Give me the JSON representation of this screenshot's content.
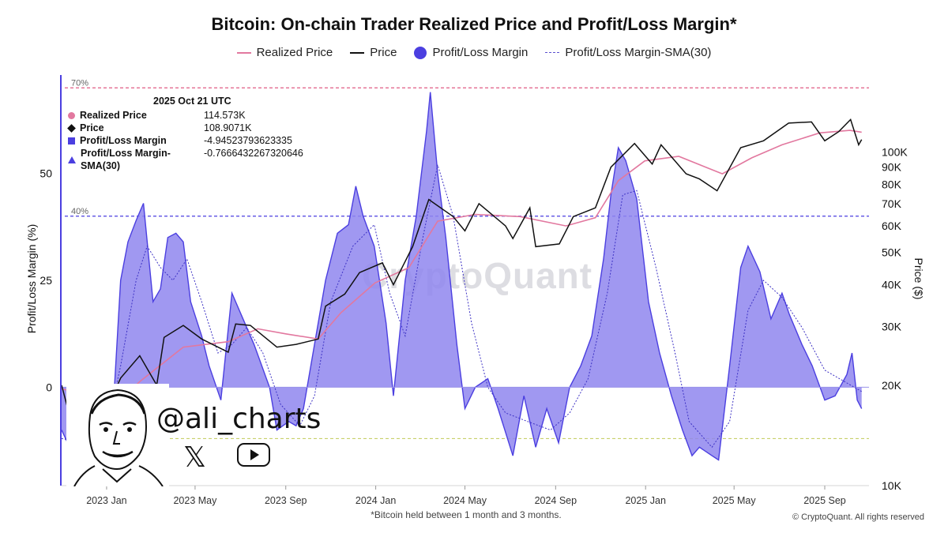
{
  "title": "Bitcoin: On-chain Trader Realized Price and Profit/Loss Margin*",
  "legend": [
    {
      "label": "Realized Price",
      "kind": "line",
      "color": "#e2789f"
    },
    {
      "label": "Price",
      "kind": "line",
      "color": "#111111"
    },
    {
      "label": "Profit/Loss Margin",
      "kind": "dot",
      "color": "#4b3fe0"
    },
    {
      "label": "Profit/Loss Margin-SMA(30)",
      "kind": "dash",
      "color": "#5a4fcf"
    }
  ],
  "tooltip": {
    "date": "2025 Oct 21 UTC",
    "rows": [
      {
        "label": "Realized Price",
        "value": "114.573K",
        "marker": "circle"
      },
      {
        "label": "Price",
        "value": "108.9071K",
        "marker": "diamond"
      },
      {
        "label": "Profit/Loss Margin",
        "value": "-4.94523793623335",
        "marker": "square"
      },
      {
        "label": "Profit/Loss Margin-SMA(30)",
        "value": "-0.7666432267320646",
        "marker": "tri"
      }
    ]
  },
  "left_axis_title": "Profit/Loss Margin (%)",
  "right_axis_title": "Price ($)",
  "footnote": "*Bitcoin held between 1 month and 3 months.",
  "copyright": "© CryptoQuant. All rights reserved",
  "watermark": "CryptoQuant",
  "handle": "@ali_charts",
  "x_icon_glyph": "𝕏",
  "colors": {
    "accent": "#4b3fe0",
    "fill": "#8f86ee",
    "realized": "#e2789f",
    "price": "#111111",
    "ref70": "#e05b83",
    "ref40": "#4b3fe0",
    "refLow": "#c8d06a"
  },
  "chart_data": {
    "type": "area",
    "left_axis": {
      "label": "Profit/Loss Margin (%)",
      "ticks": [
        0,
        25,
        50
      ],
      "range": [
        -23,
        73
      ]
    },
    "right_axis": {
      "label": "Price ($)",
      "scale": "log",
      "range": [
        10000,
        170000
      ],
      "ticks": [
        {
          "value": 10000,
          "label": "10K"
        },
        {
          "value": 20000,
          "label": "20K"
        },
        {
          "value": 30000,
          "label": "30K"
        },
        {
          "value": 40000,
          "label": "40K"
        },
        {
          "value": 50000,
          "label": "50K"
        },
        {
          "value": 60000,
          "label": "60K"
        },
        {
          "value": 70000,
          "label": "70K"
        },
        {
          "value": 80000,
          "label": "80K"
        },
        {
          "value": 90000,
          "label": "90K"
        },
        {
          "value": 100000,
          "label": "100K"
        }
      ]
    },
    "x_ticks": [
      "2023 Jan",
      "2023 May",
      "2023 Sep",
      "2024 Jan",
      "2024 May",
      "2024 Sep",
      "2025 Jan",
      "2025 May",
      "2025 Sep"
    ],
    "x_range": [
      "2022-11-01",
      "2025-10-31"
    ],
    "reference_lines": [
      {
        "value": 70,
        "label": "70%",
        "color": "#e05b83"
      },
      {
        "value": 40,
        "label": "40%",
        "color": "#4b3fe0"
      },
      {
        "value": -12,
        "label": "-12%",
        "color": "#c8d06a"
      }
    ],
    "series": [
      {
        "name": "Profit/Loss Margin",
        "axis": "left",
        "points": [
          [
            "2022-11-01",
            -10
          ],
          [
            "2022-11-20",
            -17
          ],
          [
            "2022-12-10",
            -12
          ],
          [
            "2022-12-25",
            -14
          ],
          [
            "2023-01-10",
            -5
          ],
          [
            "2023-01-20",
            25
          ],
          [
            "2023-01-30",
            34
          ],
          [
            "2023-02-10",
            39
          ],
          [
            "2023-02-20",
            43
          ],
          [
            "2023-03-05",
            20
          ],
          [
            "2023-03-15",
            23
          ],
          [
            "2023-03-25",
            35
          ],
          [
            "2023-04-05",
            36
          ],
          [
            "2023-04-15",
            34
          ],
          [
            "2023-04-25",
            20
          ],
          [
            "2023-05-10",
            12
          ],
          [
            "2023-05-20",
            5
          ],
          [
            "2023-06-05",
            -3
          ],
          [
            "2023-06-20",
            22
          ],
          [
            "2023-07-05",
            16
          ],
          [
            "2023-07-20",
            10
          ],
          [
            "2023-08-10",
            0
          ],
          [
            "2023-08-20",
            -10
          ],
          [
            "2023-09-05",
            -8
          ],
          [
            "2023-09-15",
            -9
          ],
          [
            "2023-09-25",
            -5
          ],
          [
            "2023-10-10",
            10
          ],
          [
            "2023-10-25",
            25
          ],
          [
            "2023-11-10",
            36
          ],
          [
            "2023-11-25",
            38
          ],
          [
            "2023-12-05",
            47
          ],
          [
            "2023-12-15",
            40
          ],
          [
            "2023-12-30",
            33
          ],
          [
            "2024-01-15",
            15
          ],
          [
            "2024-01-25",
            -2
          ],
          [
            "2024-02-10",
            25
          ],
          [
            "2024-02-25",
            40
          ],
          [
            "2024-03-10",
            60
          ],
          [
            "2024-03-15",
            69
          ],
          [
            "2024-03-25",
            50
          ],
          [
            "2024-04-05",
            35
          ],
          [
            "2024-04-20",
            10
          ],
          [
            "2024-05-01",
            -5
          ],
          [
            "2024-05-15",
            0
          ],
          [
            "2024-06-01",
            2
          ],
          [
            "2024-06-15",
            -5
          ],
          [
            "2024-07-05",
            -16
          ],
          [
            "2024-07-20",
            -2
          ],
          [
            "2024-08-05",
            -14
          ],
          [
            "2024-08-20",
            -5
          ],
          [
            "2024-09-05",
            -13
          ],
          [
            "2024-09-20",
            0
          ],
          [
            "2024-10-05",
            5
          ],
          [
            "2024-10-20",
            12
          ],
          [
            "2024-11-05",
            30
          ],
          [
            "2024-11-15",
            45
          ],
          [
            "2024-11-25",
            56
          ],
          [
            "2024-12-05",
            53
          ],
          [
            "2024-12-20",
            44
          ],
          [
            "2025-01-05",
            20
          ],
          [
            "2025-01-20",
            8
          ],
          [
            "2025-02-05",
            -2
          ],
          [
            "2025-02-20",
            -10
          ],
          [
            "2025-03-05",
            -16
          ],
          [
            "2025-03-15",
            -14
          ],
          [
            "2025-04-01",
            -16
          ],
          [
            "2025-04-10",
            -17
          ],
          [
            "2025-04-25",
            5
          ],
          [
            "2025-05-10",
            28
          ],
          [
            "2025-05-20",
            33
          ],
          [
            "2025-06-05",
            27
          ],
          [
            "2025-06-20",
            16
          ],
          [
            "2025-07-05",
            22
          ],
          [
            "2025-07-15",
            17
          ],
          [
            "2025-08-01",
            10
          ],
          [
            "2025-08-15",
            5
          ],
          [
            "2025-09-01",
            -3
          ],
          [
            "2025-09-15",
            -2
          ],
          [
            "2025-10-01",
            3
          ],
          [
            "2025-10-08",
            8
          ],
          [
            "2025-10-15",
            -3
          ],
          [
            "2025-10-21",
            -5
          ]
        ]
      },
      {
        "name": "Profit/Loss Margin-SMA(30)",
        "axis": "left",
        "points": [
          [
            "2022-11-01",
            -12
          ],
          [
            "2022-12-01",
            -13
          ],
          [
            "2023-01-01",
            -10
          ],
          [
            "2023-01-20",
            5
          ],
          [
            "2023-02-10",
            25
          ],
          [
            "2023-02-25",
            33
          ],
          [
            "2023-03-15",
            28
          ],
          [
            "2023-04-01",
            25
          ],
          [
            "2023-04-20",
            30
          ],
          [
            "2023-05-10",
            20
          ],
          [
            "2023-06-01",
            8
          ],
          [
            "2023-06-20",
            10
          ],
          [
            "2023-07-10",
            14
          ],
          [
            "2023-08-01",
            8
          ],
          [
            "2023-08-25",
            -4
          ],
          [
            "2023-09-20",
            -9
          ],
          [
            "2023-10-10",
            -2
          ],
          [
            "2023-11-01",
            20
          ],
          [
            "2023-12-01",
            33
          ],
          [
            "2023-12-30",
            38
          ],
          [
            "2024-01-20",
            22
          ],
          [
            "2024-02-10",
            12
          ],
          [
            "2024-03-05",
            35
          ],
          [
            "2024-03-25",
            52
          ],
          [
            "2024-04-15",
            40
          ],
          [
            "2024-05-10",
            15
          ],
          [
            "2024-06-01",
            0
          ],
          [
            "2024-06-25",
            -6
          ],
          [
            "2024-07-25",
            -8
          ],
          [
            "2024-08-25",
            -10
          ],
          [
            "2024-09-20",
            -6
          ],
          [
            "2024-10-15",
            2
          ],
          [
            "2024-11-10",
            22
          ],
          [
            "2024-12-01",
            45
          ],
          [
            "2024-12-20",
            46
          ],
          [
            "2025-01-15",
            28
          ],
          [
            "2025-02-10",
            8
          ],
          [
            "2025-03-01",
            -8
          ],
          [
            "2025-04-01",
            -14
          ],
          [
            "2025-04-25",
            -8
          ],
          [
            "2025-05-20",
            18
          ],
          [
            "2025-06-10",
            25
          ],
          [
            "2025-07-05",
            21
          ],
          [
            "2025-08-01",
            14
          ],
          [
            "2025-09-01",
            4
          ],
          [
            "2025-10-01",
            1
          ],
          [
            "2025-10-21",
            -1
          ]
        ]
      },
      {
        "name": "Price",
        "axis": "right",
        "points": [
          [
            "2022-11-01",
            20000
          ],
          [
            "2022-11-10",
            16800
          ],
          [
            "2022-12-10",
            17200
          ],
          [
            "2022-12-30",
            16600
          ],
          [
            "2023-01-20",
            21000
          ],
          [
            "2023-02-15",
            24500
          ],
          [
            "2023-03-10",
            20000
          ],
          [
            "2023-03-20",
            27800
          ],
          [
            "2023-04-15",
            30200
          ],
          [
            "2023-05-10",
            27500
          ],
          [
            "2023-06-15",
            25100
          ],
          [
            "2023-06-25",
            30500
          ],
          [
            "2023-07-15",
            30200
          ],
          [
            "2023-08-20",
            26000
          ],
          [
            "2023-09-15",
            26500
          ],
          [
            "2023-10-15",
            27500
          ],
          [
            "2023-10-25",
            34500
          ],
          [
            "2023-11-20",
            37500
          ],
          [
            "2023-12-10",
            43500
          ],
          [
            "2024-01-10",
            46500
          ],
          [
            "2024-01-25",
            40000
          ],
          [
            "2024-02-20",
            52000
          ],
          [
            "2024-03-13",
            72000
          ],
          [
            "2024-04-15",
            64000
          ],
          [
            "2024-05-01",
            58000
          ],
          [
            "2024-05-20",
            70000
          ],
          [
            "2024-06-25",
            60000
          ],
          [
            "2024-07-05",
            55000
          ],
          [
            "2024-07-28",
            68000
          ],
          [
            "2024-08-05",
            52000
          ],
          [
            "2024-09-06",
            53000
          ],
          [
            "2024-09-25",
            64000
          ],
          [
            "2024-10-25",
            68000
          ],
          [
            "2024-11-15",
            90000
          ],
          [
            "2024-12-17",
            106000
          ],
          [
            "2025-01-10",
            92000
          ],
          [
            "2025-01-22",
            105000
          ],
          [
            "2025-02-25",
            86000
          ],
          [
            "2025-03-15",
            83000
          ],
          [
            "2025-04-08",
            76500
          ],
          [
            "2025-05-10",
            103000
          ],
          [
            "2025-06-10",
            108000
          ],
          [
            "2025-07-14",
            122000
          ],
          [
            "2025-08-14",
            123000
          ],
          [
            "2025-09-01",
            108000
          ],
          [
            "2025-09-20",
            115000
          ],
          [
            "2025-10-06",
            125000
          ],
          [
            "2025-10-17",
            105000
          ],
          [
            "2025-10-21",
            108907
          ]
        ]
      },
      {
        "name": "Realized Price",
        "axis": "right",
        "points": [
          [
            "2022-11-01",
            19500
          ],
          [
            "2022-12-15",
            18500
          ],
          [
            "2023-01-10",
            17200
          ],
          [
            "2023-02-15",
            20500
          ],
          [
            "2023-04-15",
            26000
          ],
          [
            "2023-06-15",
            27000
          ],
          [
            "2023-07-25",
            29500
          ],
          [
            "2023-09-01",
            28500
          ],
          [
            "2023-10-15",
            27500
          ],
          [
            "2023-11-15",
            33000
          ],
          [
            "2023-12-31",
            40500
          ],
          [
            "2024-02-15",
            45000
          ],
          [
            "2024-03-25",
            62000
          ],
          [
            "2024-05-15",
            65000
          ],
          [
            "2024-07-15",
            64000
          ],
          [
            "2024-09-15",
            60000
          ],
          [
            "2024-10-25",
            63500
          ],
          [
            "2024-11-25",
            82000
          ],
          [
            "2024-12-31",
            94000
          ],
          [
            "2025-02-15",
            97000
          ],
          [
            "2025-04-15",
            86000
          ],
          [
            "2025-05-25",
            96000
          ],
          [
            "2025-07-05",
            105000
          ],
          [
            "2025-08-25",
            114000
          ],
          [
            "2025-10-05",
            116000
          ],
          [
            "2025-10-21",
            114573
          ]
        ]
      }
    ],
    "note": "*Bitcoin held between 1 month and 3 months."
  }
}
